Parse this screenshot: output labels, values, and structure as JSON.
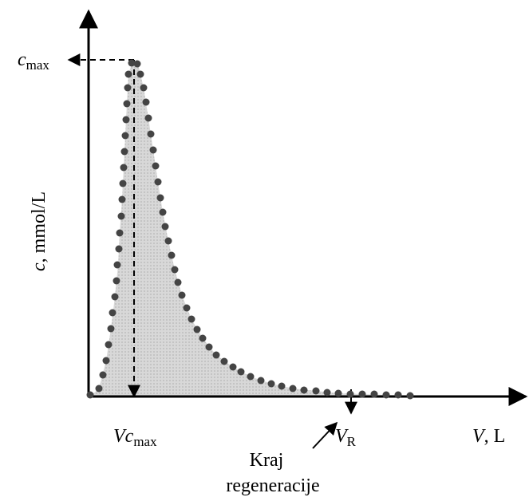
{
  "labels": {
    "c_max": {
      "symbol": "c",
      "subscript": "max"
    },
    "y_axis": {
      "symbol": "c",
      "unit": ", mmol/L"
    },
    "vc_max": {
      "symbol": "Vc",
      "subscript": "max"
    },
    "v_r": {
      "symbol": "V",
      "subscript": "R"
    },
    "x_axis": {
      "symbol": "V",
      "unit": ", L"
    },
    "annotation": [
      "Kraj",
      "regeneracije"
    ]
  }
}
